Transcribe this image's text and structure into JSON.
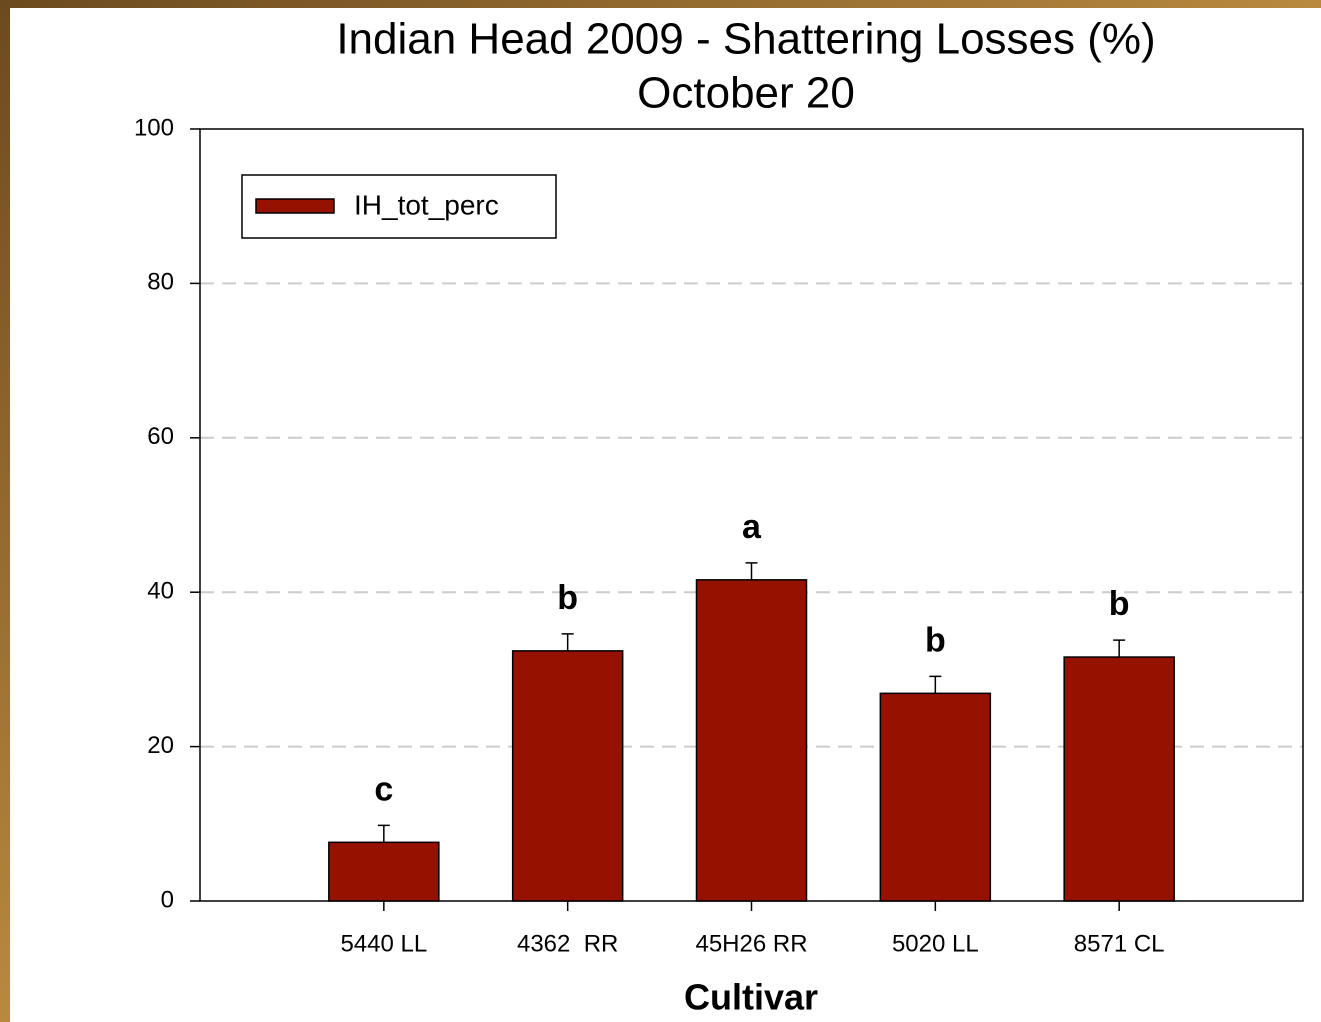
{
  "chart_data": {
    "type": "bar",
    "title": "Indian Head 2009 - Shattering Losses (%)",
    "subtitle": "October 20",
    "x_label": "Cultivar",
    "categories": [
      "5440 LL",
      "4362  RR",
      "45H26 RR",
      "5020 LL",
      "8571 CL"
    ],
    "series": [
      {
        "name": "IH_tot_perc",
        "color": "#951200",
        "values": [
          7.6,
          32.4,
          41.6,
          26.9,
          31.6
        ],
        "errors": [
          2.2,
          2.2,
          2.2,
          2.2,
          2.2
        ]
      }
    ],
    "annotations": [
      "c",
      "b",
      "a",
      "b",
      "b"
    ],
    "ylim": [
      0,
      100
    ],
    "yticks": [
      0,
      20,
      40,
      60,
      80,
      100
    ],
    "grid": true,
    "legend": "upper-left"
  }
}
